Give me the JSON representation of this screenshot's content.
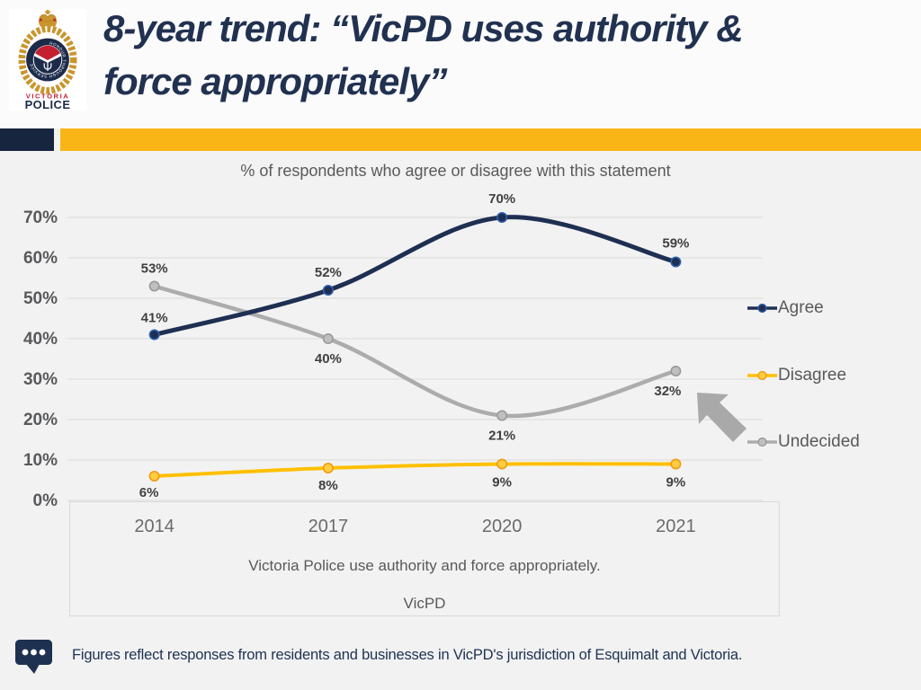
{
  "header": {
    "title_line1": "8-year trend: “VicPD uses authority &",
    "title_line2": "force appropriately”",
    "logo": {
      "motto": "HONOUR THROUGH SERVICE",
      "text_top": "VICTORIA",
      "text_bottom": "POLICE"
    }
  },
  "chart_data": {
    "type": "line",
    "title": "% of respondents who agree or disagree with this statement",
    "categories": [
      "2014",
      "2017",
      "2020",
      "2021"
    ],
    "series": [
      {
        "name": "Agree",
        "values": [
          41,
          52,
          70,
          59
        ],
        "data_labels": [
          "41%",
          "52%",
          "70%",
          "59%"
        ],
        "label_offsets": [
          [
            0,
            -18
          ],
          [
            0,
            -19
          ],
          [
            0,
            -20
          ],
          [
            0,
            -20
          ]
        ],
        "color": "#1e2f52",
        "marker_fill": "#1e2f52",
        "marker_edge": "#2e5fa8",
        "stroke_width": 5
      },
      {
        "name": "Disagree",
        "values": [
          6,
          8,
          9,
          9
        ],
        "data_labels": [
          "6%",
          "8%",
          "9%",
          "9%"
        ],
        "label_offsets": [
          [
            -6,
            19
          ],
          [
            0,
            20
          ],
          [
            0,
            21
          ],
          [
            0,
            21
          ]
        ],
        "color": "#ffc000",
        "marker_fill": "#ffcc40",
        "marker_edge": "#ed9c13",
        "stroke_width": 4
      },
      {
        "name": "Undecided",
        "values": [
          53,
          40,
          21,
          32
        ],
        "data_labels": [
          "53%",
          "40%",
          "21%",
          "32%"
        ],
        "label_offsets": [
          [
            0,
            -19
          ],
          [
            0,
            23
          ],
          [
            0,
            23
          ],
          [
            -9,
            23
          ]
        ],
        "color": "#acacac",
        "marker_fill": "#bfbfbf",
        "marker_edge": "#9a9a9a",
        "stroke_width": 4.5
      }
    ],
    "ylim": [
      0,
      70
    ],
    "ytick_step": 10,
    "yticks": [
      "0%",
      "10%",
      "20%",
      "30%",
      "40%",
      "50%",
      "60%",
      "70%"
    ],
    "grid": true,
    "legend_position": "right",
    "axis_note_line1": "Victoria Police use authority and force appropriately.",
    "axis_note_line2": "VicPD"
  },
  "footer": {
    "note": "Figures reflect responses from residents and businesses in VicPD's jurisdiction of Esquimalt and Victoria."
  },
  "colors": {
    "accent_navy": "#18253f",
    "accent_gold": "#f9b516",
    "title_navy": "#213150",
    "grid": "#dedee0",
    "axis_text": "#595959",
    "data_label": "#404040",
    "background": "#f2f2f3",
    "arrow": "#a9a9a9"
  }
}
